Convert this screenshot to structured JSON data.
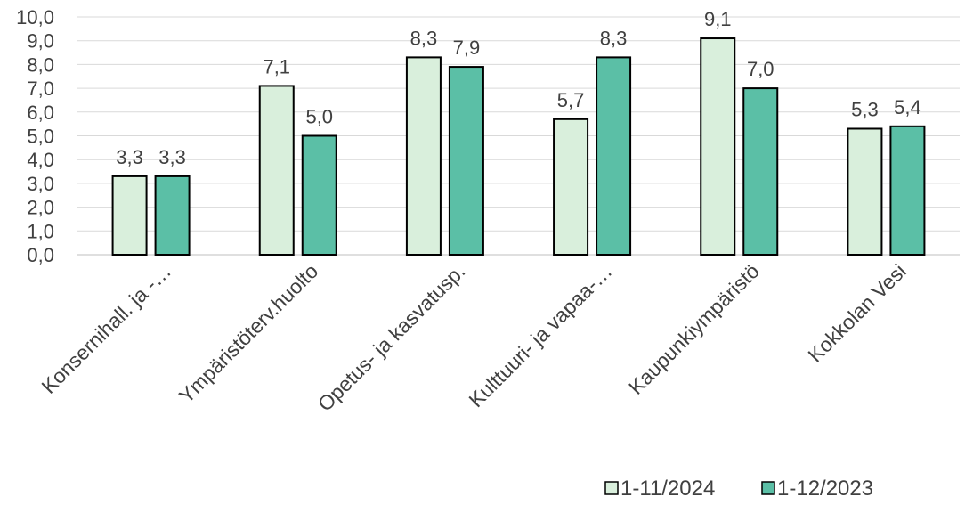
{
  "chart_data": {
    "type": "bar",
    "categories": [
      "Konsernihall. ja -…",
      "Ympäristöterv.huolto",
      "Opetus- ja kasvatusp.",
      "Kulttuuri- ja vapaa-…",
      "Kaupunkiympäristö",
      "Kokkolan Vesi"
    ],
    "series": [
      {
        "name": "1-11/2024",
        "values": [
          3.3,
          7.1,
          8.3,
          5.7,
          9.1,
          5.3
        ],
        "color": "#d9efdc"
      },
      {
        "name": "1-12/2023",
        "values": [
          3.3,
          5.0,
          7.9,
          8.3,
          7.0,
          5.4
        ],
        "color": "#5bbfa6"
      }
    ],
    "y_ticks": [
      "0,0",
      "1,0",
      "2,0",
      "3,0",
      "4,0",
      "5,0",
      "6,0",
      "7,0",
      "8,0",
      "9,0",
      "10,0"
    ],
    "ylim": [
      0,
      10
    ],
    "grid": true,
    "legend_position": "bottom-right",
    "title": "",
    "xlabel": "",
    "ylabel": ""
  }
}
